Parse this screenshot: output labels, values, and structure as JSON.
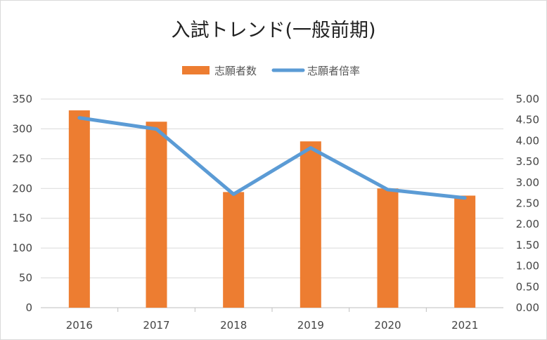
{
  "chart_data": {
    "type": "bar",
    "title": "入試トレンド(一般前期)",
    "categories": [
      "2016",
      "2017",
      "2018",
      "2019",
      "2020",
      "2021"
    ],
    "series": [
      {
        "name": "志願者数",
        "type": "bar",
        "axis": "left",
        "color": "#ED7D31",
        "values": [
          331,
          312,
          194,
          279,
          200,
          188
        ]
      },
      {
        "name": "志願者倍率",
        "type": "line",
        "axis": "right",
        "color": "#5B9BD5",
        "values": [
          4.55,
          4.28,
          2.72,
          3.83,
          2.83,
          2.63
        ]
      }
    ],
    "y_left": {
      "min": 0,
      "max": 350,
      "ticks": [
        "0",
        "50",
        "100",
        "150",
        "200",
        "250",
        "300",
        "350"
      ]
    },
    "y_right": {
      "min": 0,
      "max": 5,
      "ticks": [
        "0.00",
        "0.50",
        "1.00",
        "1.50",
        "2.00",
        "2.50",
        "3.00",
        "3.50",
        "4.00",
        "4.50",
        "5.00"
      ]
    },
    "grid": true,
    "legend_position": "top-center"
  }
}
